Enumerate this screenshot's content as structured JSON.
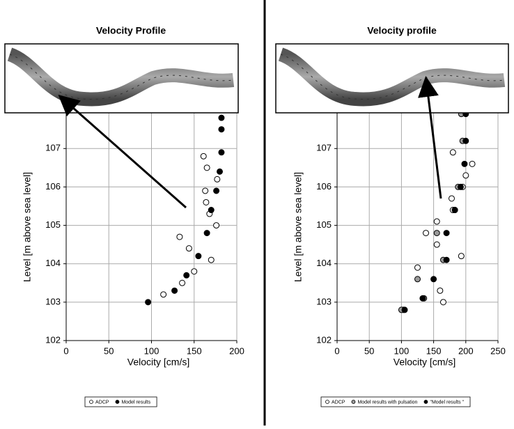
{
  "chart_data": [
    {
      "type": "scatter",
      "title": "Velocity Profile",
      "x_label": "Velocity [cm/s]",
      "y_label": "Level [m above sea level]",
      "xlim": [
        0,
        200
      ],
      "xticks": [
        0,
        50,
        100,
        150,
        200
      ],
      "ylim": [
        102,
        109
      ],
      "yticks": [
        102,
        103,
        104,
        105,
        106,
        107
      ],
      "grid": true,
      "series": [
        {
          "name": "ADCP",
          "color": "#ffffff",
          "x": [
            161,
            165,
            177,
            163,
            164,
            168,
            176,
            133,
            144,
            170,
            150,
            136,
            114
          ],
          "values": [
            106.8,
            106.5,
            106.2,
            105.9,
            105.6,
            105.3,
            105.0,
            104.7,
            104.4,
            104.1,
            103.8,
            103.5,
            103.2
          ]
        },
        {
          "name": "Model results",
          "color": "#000000",
          "x": [
            182,
            182,
            182,
            180,
            176,
            170,
            165,
            155,
            141,
            127,
            96
          ],
          "values": [
            107.8,
            107.5,
            106.9,
            106.4,
            105.9,
            105.4,
            104.8,
            104.2,
            103.7,
            103.3,
            103.0
          ]
        }
      ]
    },
    {
      "type": "scatter",
      "title": "Velocity profile",
      "x_label": "Velocity [cm/s]",
      "y_label": "Level [m above sea level]",
      "xlim": [
        0,
        250
      ],
      "xticks": [
        0,
        50,
        100,
        150,
        200,
        250
      ],
      "ylim": [
        102,
        109
      ],
      "yticks": [
        102,
        103,
        104,
        105,
        106,
        107
      ],
      "grid": true,
      "series": [
        {
          "name": "ADCP",
          "color": "#ffffff",
          "x": [
            180,
            210,
            200,
            195,
            178,
            180,
            155,
            138,
            155,
            193,
            125,
            160,
            165,
            103
          ],
          "values": [
            106.9,
            106.6,
            106.3,
            106.0,
            105.7,
            105.4,
            105.1,
            104.8,
            104.5,
            104.2,
            103.9,
            103.3,
            103.0,
            102.8
          ]
        },
        {
          "name": "Model results with pulsation",
          "color": "#999999",
          "x": [
            193,
            195,
            188,
            183,
            155,
            165,
            125,
            135,
            100
          ],
          "values": [
            107.9,
            107.2,
            106.0,
            105.4,
            104.8,
            104.1,
            103.6,
            103.1,
            102.8
          ]
        },
        {
          "name": "\"Model results \"",
          "color": "#000000",
          "x": [
            200,
            200,
            198,
            192,
            183,
            170,
            170,
            150,
            133,
            105
          ],
          "values": [
            107.9,
            107.2,
            106.6,
            106.0,
            105.4,
            104.8,
            104.1,
            103.6,
            103.1,
            102.8
          ]
        }
      ]
    }
  ]
}
